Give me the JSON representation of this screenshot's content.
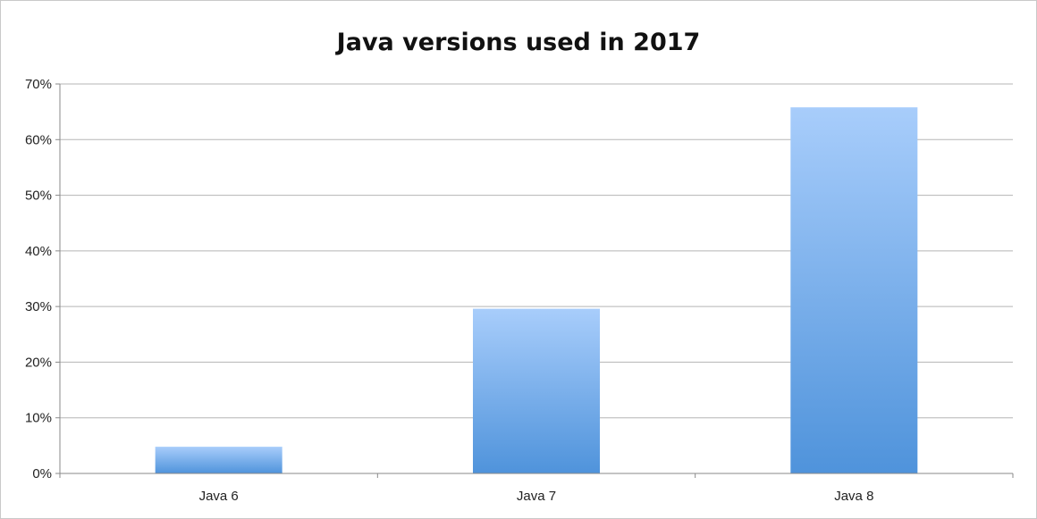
{
  "chart_data": {
    "type": "bar",
    "title": "Java versions used in 2017",
    "categories": [
      "Java 6",
      "Java 7",
      "Java 8"
    ],
    "values": [
      4.8,
      29.6,
      65.8
    ],
    "ylim": [
      0,
      70
    ],
    "yticks": [
      0,
      10,
      20,
      30,
      40,
      50,
      60,
      70
    ],
    "ytick_labels": [
      "0%",
      "10%",
      "20%",
      "30%",
      "40%",
      "50%",
      "60%",
      "70%"
    ],
    "grid": true,
    "legend": "none",
    "colors": {
      "bar_top": "#a8cdfb",
      "bar_bottom": "#4f93db",
      "grid": "#b5b5b5",
      "axis": "#8a8a8a"
    }
  }
}
